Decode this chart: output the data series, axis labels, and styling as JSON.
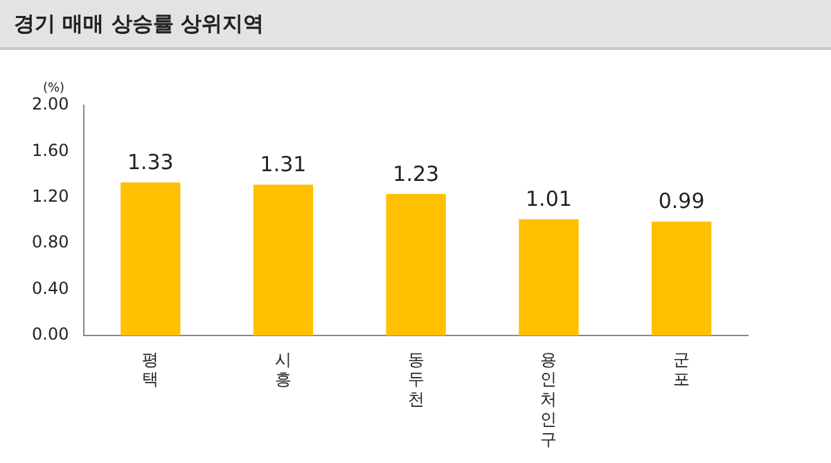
{
  "chart_data": {
    "type": "bar",
    "title": "경기 매매 상승률 상위지역",
    "ylabel": "(%)",
    "categories": [
      "평택",
      "시흥",
      "동두천",
      "용인처인구",
      "군포"
    ],
    "values": [
      1.33,
      1.31,
      1.23,
      1.01,
      0.99
    ],
    "color": "#ffc000",
    "ylim": [
      0,
      2
    ],
    "yticks": [
      {
        "value": 0,
        "label": "0.00"
      },
      {
        "value": 0.4,
        "label": "0.40"
      },
      {
        "value": 0.8,
        "label": "0.80"
      },
      {
        "value": 1.2,
        "label": "1.20"
      },
      {
        "value": 1.6,
        "label": "1.60"
      },
      {
        "value": 2,
        "label": "2.00"
      }
    ],
    "grid": false,
    "legend": false,
    "data_labels": true
  }
}
